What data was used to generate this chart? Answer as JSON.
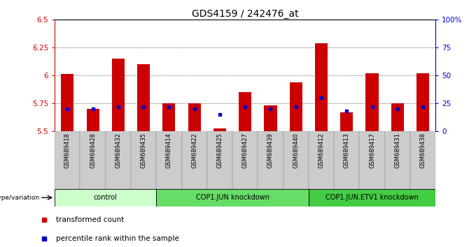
{
  "title": "GDS4159 / 242476_at",
  "samples": [
    "GSM689418",
    "GSM689428",
    "GSM689432",
    "GSM689435",
    "GSM689414",
    "GSM689422",
    "GSM689425",
    "GSM689427",
    "GSM689439",
    "GSM689440",
    "GSM689412",
    "GSM689413",
    "GSM689417",
    "GSM689431",
    "GSM689438"
  ],
  "transformed_count": [
    6.01,
    5.7,
    6.15,
    6.1,
    5.75,
    5.75,
    5.52,
    5.85,
    5.73,
    5.94,
    6.29,
    5.67,
    6.02,
    5.75,
    6.02
  ],
  "percentile_rank": [
    20,
    20,
    22,
    22,
    22,
    20,
    15,
    22,
    20,
    22,
    30,
    18,
    22,
    20,
    22
  ],
  "groups": [
    {
      "label": "control",
      "start": 0,
      "end": 4,
      "color": "#ccffcc"
    },
    {
      "label": "COP1.JUN knockdown",
      "start": 4,
      "end": 10,
      "color": "#66dd66"
    },
    {
      "label": "COP1.JUN.ETV1 knockdown",
      "start": 10,
      "end": 15,
      "color": "#44cc44"
    }
  ],
  "ymin": 5.5,
  "ymax": 6.5,
  "yticks": [
    5.5,
    5.75,
    6.0,
    6.25,
    6.5
  ],
  "ytick_labels": [
    "5.5",
    "5.75",
    "6",
    "6.25",
    "6.5"
  ],
  "y2min": 0,
  "y2max": 100,
  "y2ticks": [
    0,
    25,
    50,
    75,
    100
  ],
  "y2tick_labels": [
    "0",
    "25",
    "50",
    "75",
    "100%"
  ],
  "bar_color": "#cc0000",
  "marker_color": "#0000cc",
  "bar_width": 0.5,
  "grid_color": "#000000",
  "bg_color": "#ffffff",
  "title_color": "#000000",
  "left_axis_color": "#cc0000",
  "right_axis_color": "#0000cc",
  "legend_items": [
    "transformed count",
    "percentile rank within the sample"
  ],
  "legend_colors": [
    "#cc0000",
    "#0000cc"
  ],
  "genotype_label": "genotype/variation"
}
